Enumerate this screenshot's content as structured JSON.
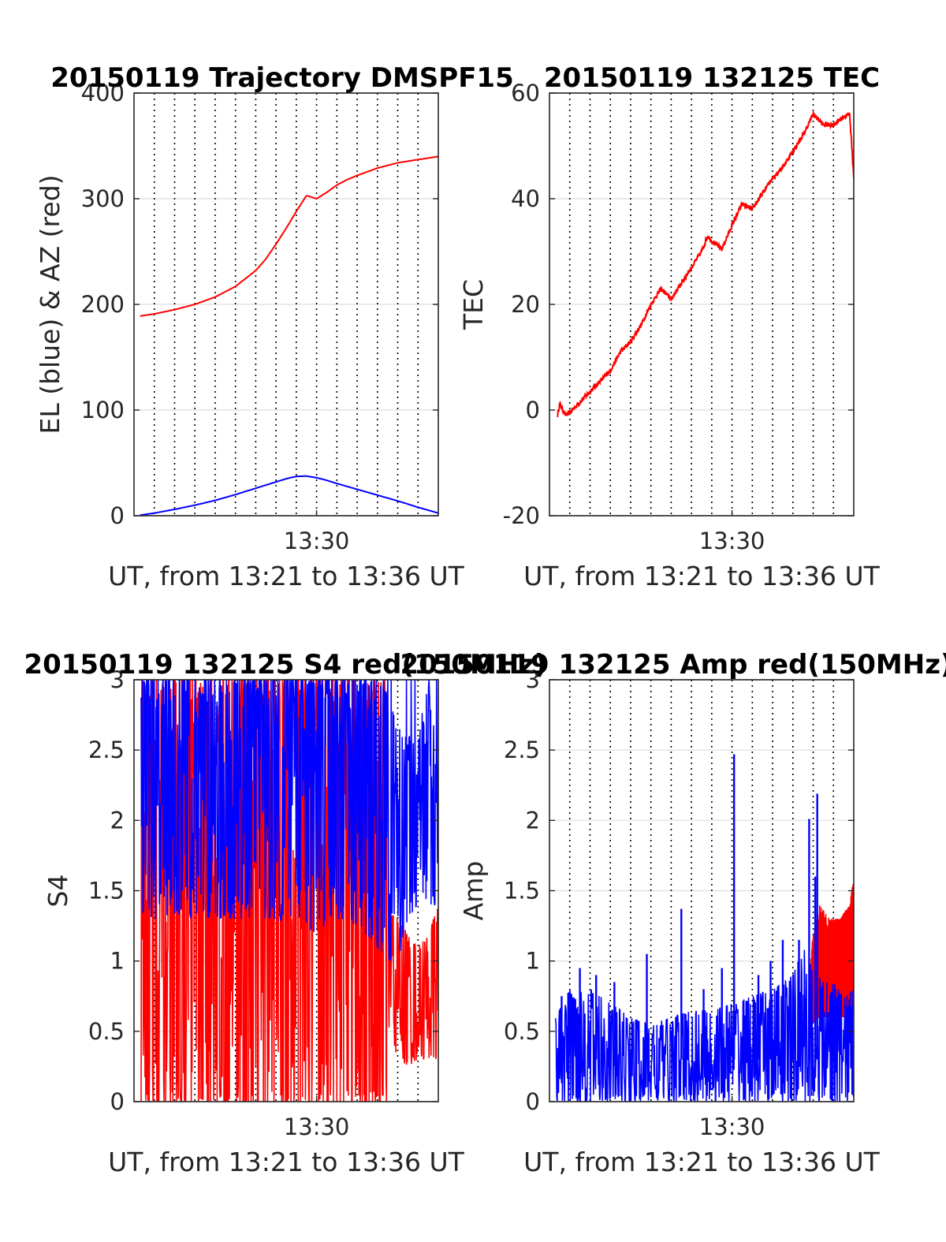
{
  "chart_data": [
    {
      "id": "traj",
      "type": "line",
      "title": "20150119 Trajectory DMSPF15",
      "xlabel": "UT, from 13:21 to 13:36 UT",
      "ylabel": "EL (blue) & AZ (red)",
      "xlim": [
        0,
        15
      ],
      "ylim": [
        0,
        400
      ],
      "yticks": [
        0,
        100,
        200,
        300,
        400
      ],
      "ytick_labels": [
        "0",
        "100",
        "200",
        "300",
        "400"
      ],
      "xtick_labels": [
        "13:30"
      ],
      "xtick_values": [
        9
      ],
      "grid": true,
      "series": [
        {
          "kind": "line",
          "color": "#ff0000",
          "x": [
            0.3,
            1,
            2,
            3,
            4,
            5,
            6,
            6.5,
            7,
            7.5,
            8,
            8.5,
            9,
            9.5,
            10,
            10.5,
            11,
            12,
            13,
            14,
            15
          ],
          "y": [
            189,
            191,
            195,
            200,
            207,
            217,
            232,
            243,
            257,
            272,
            288,
            303,
            300,
            306,
            313,
            318,
            322,
            329,
            334,
            337,
            340
          ]
        },
        {
          "kind": "line",
          "color": "#0000ff",
          "x": [
            0.3,
            1,
            2,
            3,
            4,
            5,
            6,
            7,
            7.5,
            8,
            8.5,
            9,
            9.5,
            10,
            11,
            12,
            13,
            14,
            15
          ],
          "y": [
            0.5,
            2.5,
            6,
            10,
            14.5,
            20,
            26,
            32,
            35,
            37.2,
            37.5,
            36,
            33.5,
            30.5,
            25,
            19.5,
            14,
            8,
            2.5
          ]
        }
      ]
    },
    {
      "id": "tec",
      "type": "line",
      "title": "20150119 132125 TEC",
      "xlabel": "UT, from 13:21 to 13:36 UT",
      "ylabel": "TEC",
      "xlim": [
        0,
        15
      ],
      "ylim": [
        -20,
        60
      ],
      "yticks": [
        -20,
        0,
        20,
        40,
        60
      ],
      "ytick_labels": [
        "-20",
        "0",
        "20",
        "40",
        "60"
      ],
      "xtick_labels": [
        "13:30"
      ],
      "xtick_values": [
        9
      ],
      "grid": true,
      "series": [
        {
          "kind": "line",
          "color": "#ff0000",
          "x": [
            0.4,
            0.5,
            0.8,
            1,
            1.5,
            2,
            2.5,
            3,
            3.5,
            4,
            4.5,
            5,
            5.5,
            6,
            6.5,
            7,
            7.5,
            7.8,
            8,
            8.5,
            9,
            9.5,
            10,
            10.5,
            11,
            11.5,
            12,
            12.5,
            13,
            13.5,
            14,
            14.5,
            14.8,
            15
          ],
          "y": [
            -1,
            1.2,
            -1,
            -0.5,
            1.5,
            3.5,
            5.5,
            7.5,
            11,
            13,
            16,
            20,
            23,
            21,
            24,
            27,
            30,
            33,
            32,
            30.5,
            35,
            39,
            38,
            41,
            44,
            46,
            49,
            52,
            56,
            54,
            54,
            55.5,
            56,
            44
          ]
        }
      ]
    },
    {
      "id": "s4",
      "type": "line",
      "title": "20150119 132125 S4 red(150MHz)",
      "xlabel": "UT, from 13:21 to 13:36 UT",
      "ylabel": "S4",
      "xlim": [
        0,
        15
      ],
      "ylim": [
        0,
        3
      ],
      "yticks": [
        0,
        0.5,
        1,
        1.5,
        2,
        2.5,
        3
      ],
      "ytick_labels": [
        "0",
        "0.5",
        "1",
        "1.5",
        "2",
        "2.5",
        "3"
      ],
      "xtick_labels": [
        "13:30"
      ],
      "xtick_values": [
        9
      ],
      "grid": true,
      "series": [
        {
          "kind": "band",
          "color": "#ff0000",
          "x": [
            0.35,
            1,
            2,
            3,
            4,
            5,
            6,
            7,
            8,
            9,
            10,
            11,
            12,
            12.5,
            12.6,
            13,
            13.5,
            14,
            14.5,
            15
          ],
          "lo": [
            0,
            0,
            0,
            0,
            0,
            0,
            0,
            0,
            0,
            0,
            0,
            0,
            0,
            0,
            0.5,
            0.3,
            0.25,
            0.3,
            0.3,
            0.3
          ],
          "hi": [
            3,
            3,
            3,
            3,
            3,
            3,
            3,
            3,
            3,
            3,
            3,
            3,
            3,
            3,
            1.4,
            1.3,
            1.2,
            1.1,
            1.2,
            1.4
          ]
        },
        {
          "kind": "band",
          "color": "#0000ff",
          "x": [
            0.35,
            1,
            2,
            3,
            4,
            5,
            6,
            7,
            8,
            9,
            10,
            11,
            12,
            12.5,
            13,
            13.5,
            14,
            14.5,
            15
          ],
          "lo": [
            1.35,
            1.3,
            1.3,
            1.3,
            1.3,
            1.3,
            1.3,
            1.3,
            1.25,
            1.2,
            1.3,
            1.25,
            1.1,
            1.0,
            1.0,
            1.3,
            1.4,
            1.4,
            1.4
          ],
          "hi": [
            3,
            3,
            3,
            3,
            3,
            3,
            3,
            3,
            3,
            3,
            3,
            3,
            3,
            2.9,
            2.7,
            2.6,
            2.6,
            3.0,
            2.4
          ]
        }
      ]
    },
    {
      "id": "amp",
      "type": "line",
      "title": "20150119 132125 Amp red(150MHz)",
      "xlabel": "UT, from 13:21 to 13:36 UT",
      "ylabel": "Amp",
      "xlim": [
        0,
        15
      ],
      "ylim": [
        0,
        3
      ],
      "yticks": [
        0,
        0.5,
        1,
        1.5,
        2,
        2.5,
        3
      ],
      "ytick_labels": [
        "0",
        "0.5",
        "1",
        "1.5",
        "2",
        "2.5",
        "3"
      ],
      "xtick_labels": [
        "13:30"
      ],
      "xtick_values": [
        9
      ],
      "grid": true,
      "series": [
        {
          "kind": "band",
          "color": "#ff0000",
          "x": [
            12.9,
            13.3,
            13.8,
            14.3,
            14.8,
            15
          ],
          "lo": [
            0.55,
            0.6,
            0.6,
            0.6,
            0.6,
            0.6
          ],
          "hi": [
            1.1,
            1.4,
            1.3,
            1.3,
            1.4,
            1.6
          ]
        },
        {
          "kind": "band",
          "color": "#0000ff",
          "x": [
            0.3,
            1,
            2,
            3,
            4,
            5,
            6,
            7,
            8,
            9,
            10,
            11,
            12,
            12.5,
            13,
            13.5,
            14,
            14.5,
            15
          ],
          "lo": [
            0,
            0,
            0,
            0,
            0,
            0,
            0,
            0,
            0,
            0,
            0,
            0,
            0,
            0,
            0,
            0,
            0,
            0,
            0
          ],
          "hi": [
            0.6,
            0.8,
            0.8,
            0.7,
            0.6,
            0.55,
            0.6,
            0.65,
            0.65,
            0.7,
            0.75,
            0.8,
            0.9,
            1.1,
            0.95,
            0.85,
            0.85,
            0.75,
            0.8
          ]
        },
        {
          "kind": "spikes",
          "color": "#0000ff",
          "x": [
            0.6,
            1.5,
            2.3,
            3.2,
            4.8,
            6.5,
            7.6,
            8.5,
            9.1,
            10.3,
            10.9,
            11.5,
            12.3,
            12.8,
            13.1,
            13.2
          ],
          "y": [
            0.75,
            0.95,
            0.9,
            0.85,
            1.05,
            1.37,
            0.8,
            0.95,
            2.47,
            0.9,
            1.0,
            1.15,
            1.15,
            2.01,
            1.6,
            2.19
          ]
        }
      ]
    }
  ]
}
